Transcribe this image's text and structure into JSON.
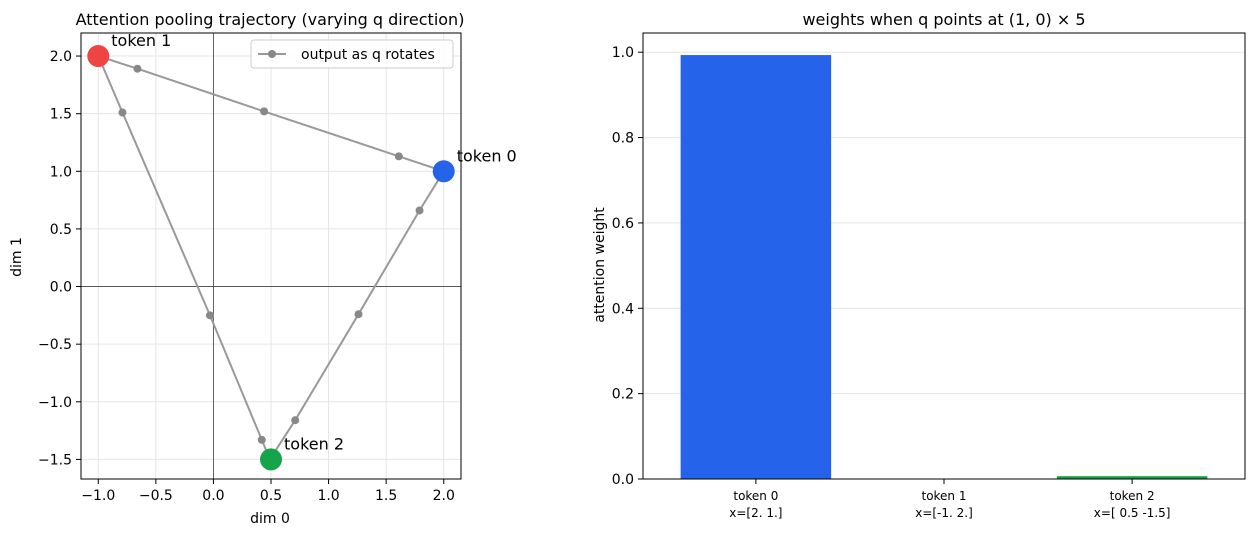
{
  "chart_data": [
    {
      "type": "line",
      "title": "Attention pooling trajectory (varying q direction)",
      "xlabel": "dim 0",
      "ylabel": "dim 1",
      "xlim": [
        -1.15,
        2.15
      ],
      "ylim": [
        -1.67,
        2.2
      ],
      "xticks": [
        -1.0,
        -0.5,
        0.0,
        0.5,
        1.0,
        1.5,
        2.0
      ],
      "xtick_labels": [
        "−1.0",
        "−0.5",
        "0.0",
        "0.5",
        "1.0",
        "1.5",
        "2.0"
      ],
      "yticks": [
        -1.5,
        -1.0,
        -0.5,
        0.0,
        0.5,
        1.0,
        1.5,
        2.0
      ],
      "ytick_labels": [
        "−1.5",
        "−1.0",
        "−0.5",
        "0.0",
        "0.5",
        "1.0",
        "1.5",
        "2.0"
      ],
      "grid": true,
      "legend": {
        "position": "top-right",
        "entries": [
          "output as q rotates"
        ]
      },
      "series": [
        {
          "name": "output as q rotates",
          "color": "#999999",
          "x": [
            0.49,
            0.71,
            1.26,
            1.79,
            2.0,
            1.61,
            0.44,
            -0.66,
            -1.0,
            -0.79,
            -0.03,
            0.42,
            0.49
          ],
          "y": [
            -1.5,
            -1.16,
            -0.24,
            0.66,
            1.0,
            1.13,
            1.52,
            1.89,
            2.0,
            1.51,
            -0.25,
            -1.33,
            -1.5
          ]
        }
      ],
      "tokens": [
        {
          "label": "token 0",
          "x": 2.0,
          "y": 1.0,
          "color": "#2563eb"
        },
        {
          "label": "token 1",
          "x": -1.0,
          "y": 2.0,
          "color": "#ef4444"
        },
        {
          "label": "token 2",
          "x": 0.5,
          "y": -1.5,
          "color": "#16a34a"
        }
      ],
      "reference_lines": {
        "x": 0,
        "y": 0
      }
    },
    {
      "type": "bar",
      "title": "weights when q points at (1, 0) × 5",
      "xlabel": "",
      "ylabel": "attention weight",
      "ylim": [
        0,
        1.045
      ],
      "yticks": [
        0.0,
        0.2,
        0.4,
        0.6,
        0.8,
        1.0
      ],
      "ytick_labels": [
        "0.0",
        "0.2",
        "0.4",
        "0.6",
        "0.8",
        "1.0"
      ],
      "grid": true,
      "categories": [
        [
          "token 0",
          "x=[2. 1.]"
        ],
        [
          "token 1",
          "x=[-1.  2.]"
        ],
        [
          "token 2",
          "x=[ 0.5 -1.5]"
        ]
      ],
      "values": [
        0.9933,
        0.0,
        0.0067
      ],
      "colors": [
        "#2563eb",
        "#ef4444",
        "#16a34a"
      ]
    }
  ]
}
